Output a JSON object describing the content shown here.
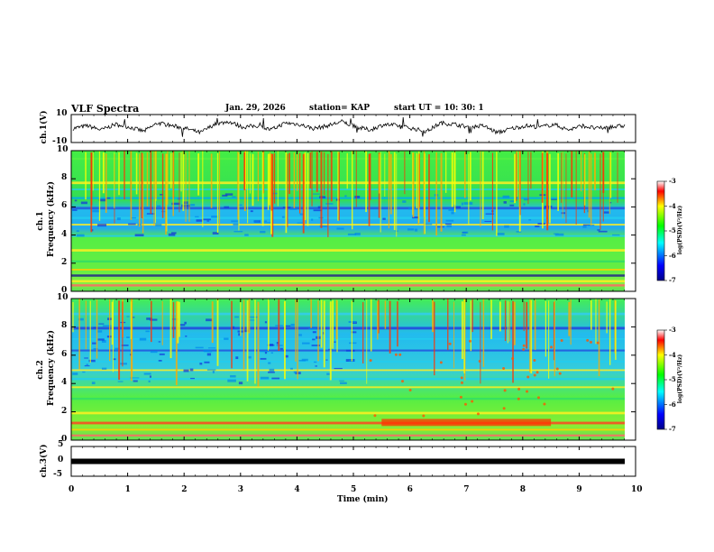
{
  "header": {
    "title": "VLF Spectra",
    "date": "Jan. 29, 2026",
    "station": "station= KAP",
    "start_ut": "start UT =  10: 30: 1"
  },
  "colors": {
    "spectrogram_stops": [
      "#0000aa",
      "#0000ff",
      "#00ffff",
      "#00ff00",
      "#ffff00",
      "#ff0000",
      "#ff0000"
    ],
    "trace": "#000000",
    "background": "#ffffff"
  },
  "chart_data": [
    {
      "type": "line",
      "name": "ch1-waveform",
      "ylabel": "ch.1(V)",
      "ylim": [
        -10,
        10
      ],
      "y_ticks": [
        "10",
        "-10"
      ],
      "xlim": [
        0,
        10
      ],
      "description_series": "broadband voltage trace oscillating around 0 V",
      "series_level": [
        0,
        2,
        -1,
        3,
        1,
        -2,
        4,
        2,
        0,
        -3,
        3,
        5,
        1,
        2,
        -1,
        4,
        3,
        0,
        2,
        5,
        1,
        -1,
        3,
        2,
        0,
        -2,
        4,
        3,
        1,
        2,
        -3,
        0,
        2,
        1,
        3,
        -1,
        2,
        0,
        1,
        2
      ]
    },
    {
      "type": "heatmap",
      "name": "ch1-spectrogram",
      "ylabel_top": "ch.1",
      "ylabel": "Frequency (kHz)",
      "ylim": [
        0,
        10
      ],
      "y_ticks": [
        "0",
        "2",
        "4",
        "6",
        "8",
        "10"
      ],
      "xlim": [
        0,
        10
      ],
      "colorbar": {
        "label": "log(PSD)(V²/Hz)",
        "range": [
          -7,
          -3
        ],
        "ticks": [
          "-3",
          "-4",
          "-5",
          "-6",
          "-7"
        ]
      }
    },
    {
      "type": "heatmap",
      "name": "ch2-spectrogram",
      "ylabel_top": "ch.2",
      "ylabel": "Frequency (kHz)",
      "ylim": [
        0,
        10
      ],
      "y_ticks": [
        "0",
        "2",
        "4",
        "6",
        "8",
        "10"
      ],
      "xlim": [
        0,
        10
      ],
      "colorbar": {
        "label": "log(PSD)(V²/Hz)",
        "range": [
          -7,
          -3
        ],
        "ticks": [
          "-3",
          "-4",
          "-5",
          "-6",
          "-7"
        ]
      }
    },
    {
      "type": "line",
      "name": "ch3-waveform",
      "ylabel": "ch.3(V)",
      "ylim": [
        -5,
        5
      ],
      "y_ticks": [
        "5",
        "0",
        "-5"
      ],
      "xlim": [
        0,
        10
      ],
      "constant_level": 0
    }
  ],
  "x_axis": {
    "label": "Time (min)",
    "ticks": [
      "0",
      "1",
      "2",
      "3",
      "4",
      "5",
      "6",
      "7",
      "8",
      "9",
      "10"
    ]
  }
}
